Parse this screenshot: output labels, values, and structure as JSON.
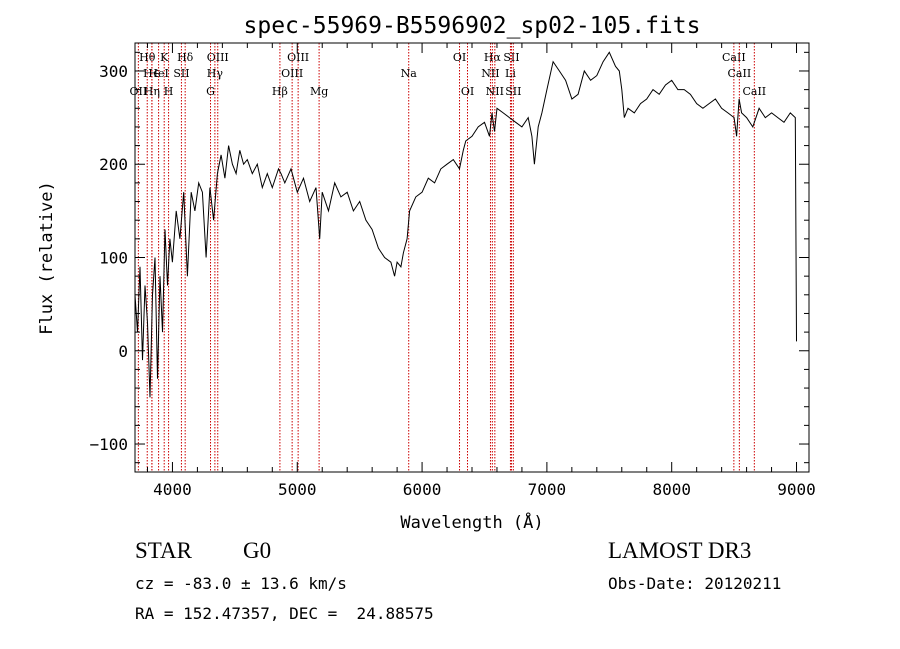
{
  "chart_data": {
    "type": "line",
    "title": "spec-55969-B5596902_sp02-105.fits",
    "xlabel": "Wavelength (Å)",
    "ylabel": "Flux (relative)",
    "xlim": [
      3700,
      9100
    ],
    "ylim": [
      -130,
      330
    ],
    "x_ticks": [
      4000,
      5000,
      6000,
      7000,
      8000,
      9000
    ],
    "y_ticks": [
      -100,
      0,
      100,
      200,
      300
    ],
    "grid": false,
    "series": [
      {
        "color": "#000000",
        "x": [
          3700,
          3720,
          3740,
          3760,
          3780,
          3800,
          3820,
          3840,
          3860,
          3880,
          3900,
          3920,
          3940,
          3960,
          3980,
          4000,
          4030,
          4060,
          4090,
          4120,
          4150,
          4180,
          4210,
          4240,
          4270,
          4300,
          4330,
          4360,
          4390,
          4420,
          4450,
          4480,
          4510,
          4540,
          4570,
          4600,
          4640,
          4680,
          4720,
          4760,
          4800,
          4850,
          4870,
          4900,
          4950,
          5000,
          5050,
          5100,
          5150,
          5180,
          5200,
          5250,
          5300,
          5350,
          5400,
          5450,
          5500,
          5550,
          5600,
          5650,
          5700,
          5750,
          5780,
          5800,
          5830,
          5850,
          5880,
          5900,
          5950,
          6000,
          6050,
          6100,
          6150,
          6200,
          6250,
          6300,
          6330,
          6350,
          6400,
          6450,
          6500,
          6540,
          6560,
          6580,
          6600,
          6650,
          6700,
          6750,
          6800,
          6850,
          6880,
          6900,
          6930,
          6960,
          7000,
          7050,
          7100,
          7150,
          7200,
          7250,
          7300,
          7350,
          7400,
          7450,
          7500,
          7550,
          7580,
          7600,
          7620,
          7650,
          7700,
          7750,
          7800,
          7850,
          7900,
          7950,
          8000,
          8050,
          8100,
          8150,
          8200,
          8250,
          8300,
          8350,
          8400,
          8450,
          8500,
          8520,
          8540,
          8560,
          8600,
          8650,
          8700,
          8750,
          8800,
          8850,
          8900,
          8950,
          8990,
          9000
        ],
        "y": [
          60,
          20,
          90,
          -10,
          70,
          30,
          -50,
          60,
          100,
          -30,
          80,
          20,
          130,
          70,
          120,
          95,
          150,
          120,
          170,
          80,
          170,
          150,
          180,
          170,
          100,
          175,
          140,
          190,
          210,
          185,
          220,
          200,
          190,
          215,
          200,
          205,
          190,
          200,
          175,
          190,
          175,
          195,
          190,
          180,
          195,
          170,
          185,
          160,
          175,
          120,
          170,
          150,
          180,
          165,
          170,
          150,
          160,
          140,
          130,
          110,
          100,
          95,
          80,
          95,
          90,
          105,
          120,
          150,
          165,
          170,
          185,
          180,
          195,
          200,
          205,
          195,
          215,
          225,
          230,
          240,
          245,
          230,
          255,
          235,
          260,
          255,
          250,
          245,
          240,
          250,
          230,
          200,
          240,
          255,
          280,
          310,
          300,
          290,
          270,
          275,
          300,
          290,
          295,
          310,
          320,
          305,
          300,
          280,
          250,
          260,
          255,
          265,
          270,
          280,
          275,
          285,
          290,
          280,
          280,
          275,
          265,
          260,
          265,
          270,
          260,
          255,
          250,
          230,
          270,
          255,
          250,
          240,
          260,
          250,
          255,
          250,
          245,
          255,
          250,
          10
        ]
      }
    ],
    "line_markers": [
      {
        "label": "Hθ",
        "wavelength": 3798,
        "row": 0
      },
      {
        "label": "H∈",
        "wavelength": 3836,
        "row": 1
      },
      {
        "label": "OII",
        "wavelength": 3727,
        "row": 2
      },
      {
        "label": "K",
        "wavelength": 3934,
        "row": 0
      },
      {
        "label": "HeI",
        "wavelength": 3889,
        "row": 1
      },
      {
        "label": "Hη",
        "wavelength": 3835,
        "row": 2
      },
      {
        "label": "Hδ",
        "wavelength": 4102,
        "row": 0
      },
      {
        "label": "SII",
        "wavelength": 4072,
        "row": 1
      },
      {
        "label": "H",
        "wavelength": 3969,
        "row": 2
      },
      {
        "label": "OIII",
        "wavelength": 4363,
        "row": 0
      },
      {
        "label": "Hγ",
        "wavelength": 4340,
        "row": 1
      },
      {
        "label": "G",
        "wavelength": 4305,
        "row": 2
      },
      {
        "label": "OIII",
        "wavelength": 5007,
        "row": 0
      },
      {
        "label": "OIII",
        "wavelength": 4959,
        "row": 1
      },
      {
        "label": "Hβ",
        "wavelength": 4861,
        "row": 2
      },
      {
        "label": "Mg",
        "wavelength": 5175,
        "row": 2
      },
      {
        "label": "Na",
        "wavelength": 5893,
        "row": 1
      },
      {
        "label": "OI",
        "wavelength": 6300,
        "row": 0
      },
      {
        "label": "OI",
        "wavelength": 6364,
        "row": 2
      },
      {
        "label": "Hα",
        "wavelength": 6563,
        "row": 0
      },
      {
        "label": "SII",
        "wavelength": 6716,
        "row": 0
      },
      {
        "label": "NII",
        "wavelength": 6548,
        "row": 1
      },
      {
        "label": "Li",
        "wavelength": 6708,
        "row": 1
      },
      {
        "label": "NII",
        "wavelength": 6583,
        "row": 2
      },
      {
        "label": "SII",
        "wavelength": 6731,
        "row": 2
      },
      {
        "label": "CaII",
        "wavelength": 8498,
        "row": 0
      },
      {
        "label": "CaII",
        "wavelength": 8542,
        "row": 1
      },
      {
        "label": "CaII",
        "wavelength": 8662,
        "row": 2
      }
    ]
  },
  "info": {
    "class": "STAR",
    "subclass": "G0",
    "survey": "LAMOST DR3",
    "cz": "cz = -83.0 ± 13.6 km/s",
    "obs_date": "Obs-Date: 20120211",
    "radec": "RA = 152.47357, DEC =  24.88575"
  },
  "colors": {
    "spectrum": "#000000",
    "line_markers": "#cc0000",
    "axes": "#000000"
  }
}
